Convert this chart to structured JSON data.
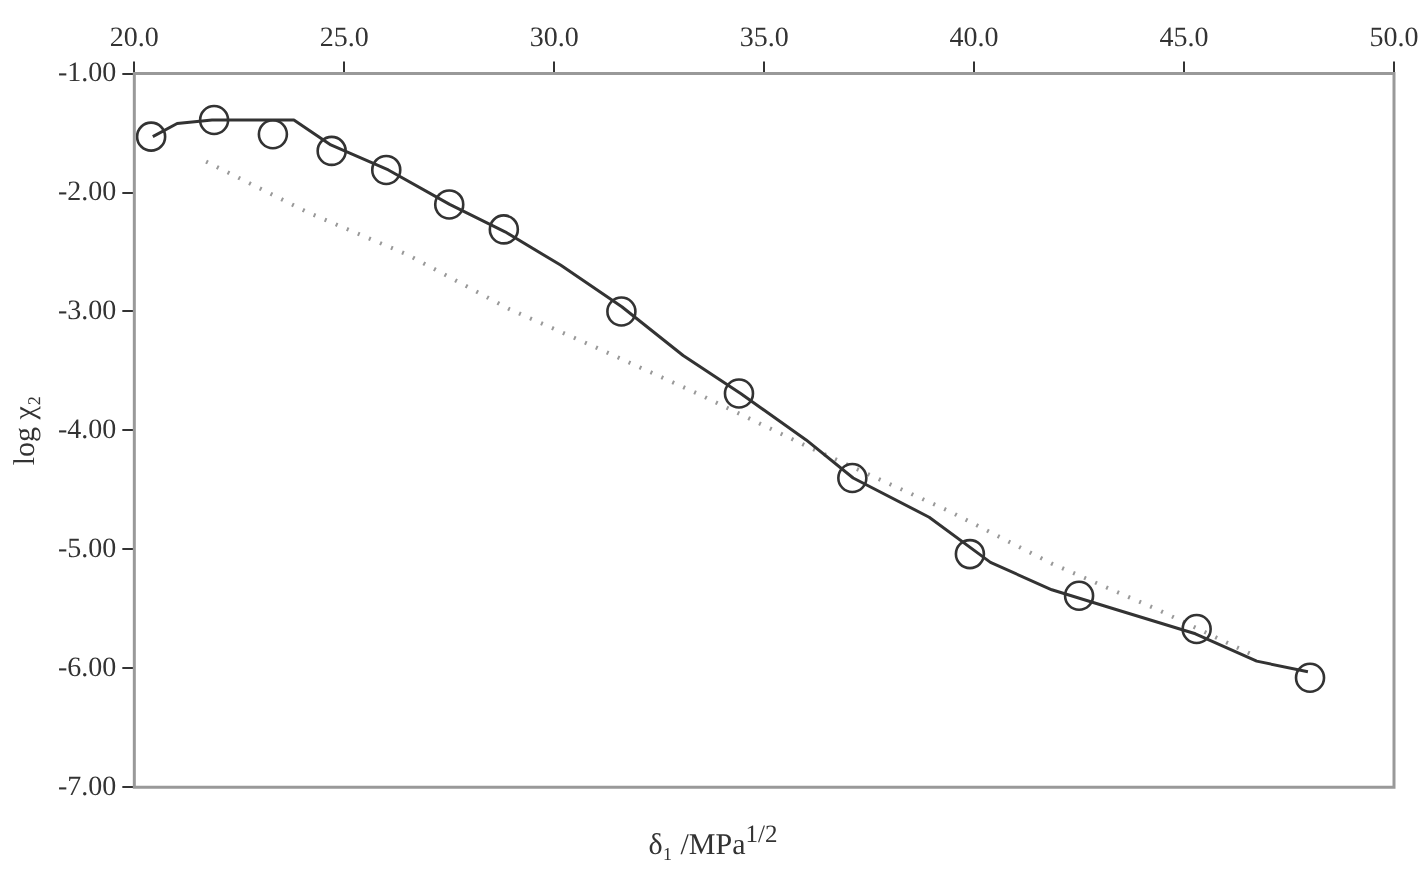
{
  "chart_data": {
    "type": "scatter",
    "xlabel": "δ₁ /MPa$^{1/2}$",
    "ylabel": "log χ₂",
    "xlim": [
      20,
      50
    ],
    "xticks": [
      {
        "value": 20,
        "label": "20.0"
      },
      {
        "value": 25,
        "label": "25.0"
      },
      {
        "value": 30,
        "label": "30.0"
      },
      {
        "value": 35,
        "label": "35.0"
      },
      {
        "value": 40,
        "label": "40.0"
      },
      {
        "value": 45,
        "label": "45.0"
      },
      {
        "value": 50,
        "label": "50.0"
      }
    ],
    "ylim": [
      -7,
      -1
    ],
    "yticks": [
      {
        "value": -7,
        "label": "-7.00"
      },
      {
        "value": -6,
        "label": "-6.00"
      },
      {
        "value": -5,
        "label": "-5.00"
      },
      {
        "value": -4,
        "label": "-4.00"
      },
      {
        "value": -3,
        "label": "-3.00"
      },
      {
        "value": -2,
        "label": "-2.00"
      },
      {
        "value": -1,
        "label": "-1.00"
      }
    ],
    "grid": false,
    "legend": false,
    "series": [
      {
        "marker": "circle",
        "color": "#333333",
        "x": [
          20.4,
          21.9,
          23.3,
          24.7,
          26.0,
          27.5,
          28.8,
          31.6,
          34.4,
          37.1,
          39.9,
          42.5,
          45.3,
          48.0
        ],
        "values": [
          -1.53,
          -1.39,
          -1.51,
          -1.65,
          -1.81,
          -2.1,
          -2.31,
          -3.0,
          -3.69,
          -4.4,
          -5.04,
          -5.39,
          -5.67,
          -6.08
        ]
      },
      {
        "type": "line",
        "marker": "none",
        "line_style": "solid",
        "color": "#333333",
        "x": [
          20.44,
          21.02,
          21.85,
          23.8,
          24.68,
          26.05,
          27.51,
          28.83,
          30.15,
          31.61,
          33.07,
          34.44,
          36.0,
          37.12,
          38.93,
          40.39,
          41.85,
          43.32,
          45.27,
          46.73,
          47.95
        ],
        "values": [
          -1.53,
          -1.42,
          -1.39,
          -1.39,
          -1.6,
          -1.81,
          -2.1,
          -2.33,
          -2.61,
          -2.96,
          -3.37,
          -3.69,
          -4.08,
          -4.4,
          -4.73,
          -5.11,
          -5.34,
          -5.5,
          -5.71,
          -5.94,
          -6.03
        ]
      },
      {
        "type": "line",
        "marker": "none",
        "line_style": "dotted",
        "color": "#999999",
        "x": [
          21.71,
          24.15,
          26.49,
          28.93,
          30.98,
          33.41,
          36.0,
          39.41,
          41.85,
          44.39,
          46.59
        ],
        "values": [
          -1.74,
          -2.17,
          -2.52,
          -2.98,
          -3.3,
          -3.69,
          -4.13,
          -4.68,
          -5.12,
          -5.51,
          -5.88
        ]
      }
    ]
  }
}
